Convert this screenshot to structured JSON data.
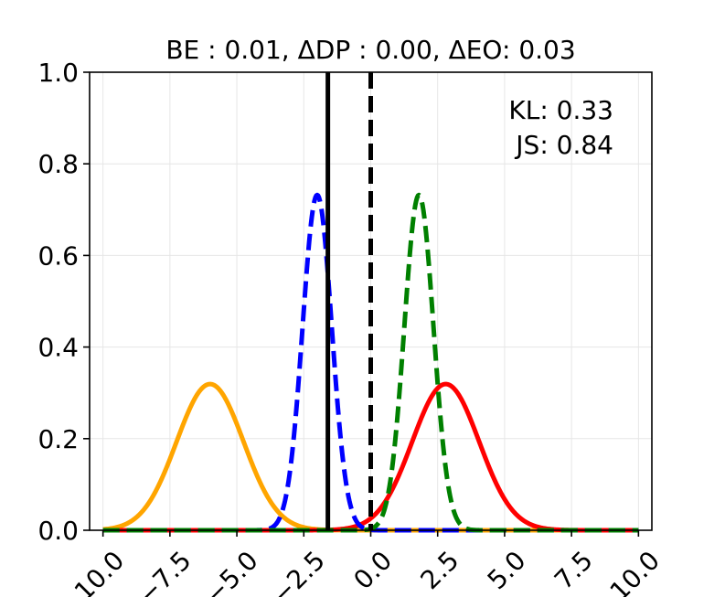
{
  "chart_data": {
    "type": "line",
    "title": "BE : 0.01, ΔDP : 0.00, ΔEO: 0.03",
    "xlabel": "",
    "ylabel": "",
    "xlim": [
      -10.5,
      10.5
    ],
    "ylim": [
      0.0,
      1.0
    ],
    "grid": true,
    "x_ticks": [
      "−10.0",
      "−7.5",
      "−5.0",
      "−2.5",
      "0.0",
      "2.5",
      "5.0",
      "7.5",
      "10.0"
    ],
    "x_tick_values": [
      -10,
      -7.5,
      -5,
      -2.5,
      0,
      2.5,
      5,
      7.5,
      10
    ],
    "y_ticks": [
      "0.0",
      "0.2",
      "0.4",
      "0.6",
      "0.8",
      "1.0"
    ],
    "y_tick_values": [
      0,
      0.2,
      0.4,
      0.6,
      0.8,
      1.0
    ],
    "annotations": [
      "KL: 0.33",
      "JS: 0.84"
    ],
    "series": [
      {
        "id": "orange-solid",
        "color": "#ffa500",
        "style": "solid",
        "mean": -6.0,
        "std": 1.25
      },
      {
        "id": "red-solid",
        "color": "#ff0000",
        "style": "solid",
        "mean": 2.8,
        "std": 1.25
      },
      {
        "id": "blue-dashed",
        "color": "#0000ff",
        "style": "dashed",
        "mean": -2.0,
        "std": 0.545
      },
      {
        "id": "green-dashed",
        "color": "#008000",
        "style": "dashed",
        "mean": 1.8,
        "std": 0.545
      }
    ],
    "vertical_lines": [
      {
        "id": "threshold-solid",
        "x": -1.6,
        "color": "#000000",
        "style": "solid"
      },
      {
        "id": "threshold-dashed",
        "x": 0.0,
        "color": "#000000",
        "style": "dashed"
      }
    ]
  }
}
